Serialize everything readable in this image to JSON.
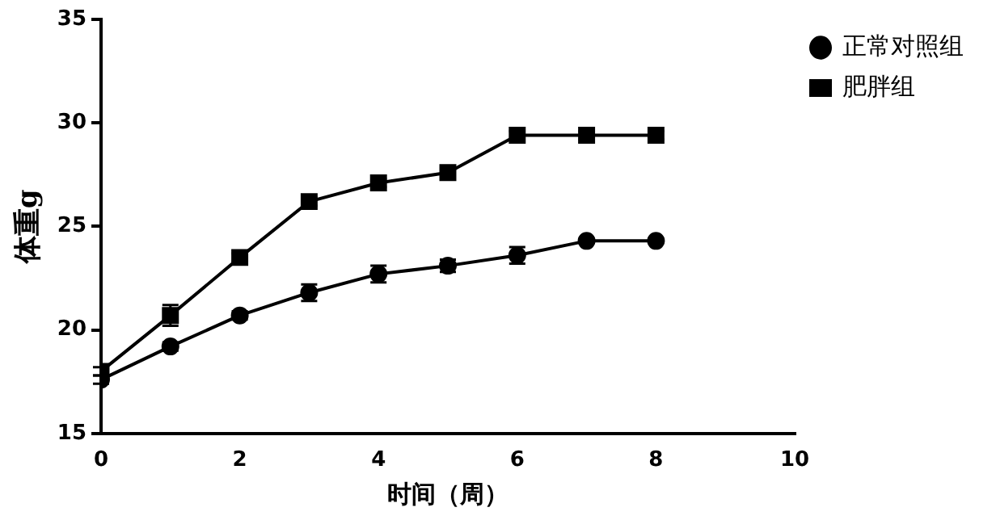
{
  "chart_data": {
    "type": "line",
    "xlabel": "时间（周）",
    "ylabel": "体重g",
    "x": [
      0,
      1,
      2,
      3,
      4,
      5,
      6,
      7,
      8
    ],
    "series": [
      {
        "name": "正常对照组",
        "color": "#000000",
        "marker": "circle",
        "values": [
          17.6,
          19.2,
          20.7,
          21.8,
          22.7,
          23.1,
          23.6,
          24.3,
          24.3
        ],
        "errors": [
          0.2,
          0.2,
          0.2,
          0.4,
          0.4,
          0.3,
          0.4,
          0.1,
          0.1
        ]
      },
      {
        "name": "肥胖组",
        "color": "#000000",
        "marker": "square",
        "values": [
          18.0,
          20.7,
          23.5,
          26.2,
          27.1,
          27.6,
          29.4,
          29.4,
          29.4
        ],
        "errors": [
          0.2,
          0.5,
          0.2,
          0.2,
          0.2,
          0.2,
          0.2,
          0.2,
          0.2
        ]
      }
    ],
    "xlim": [
      0,
      10
    ],
    "xticks": [
      0,
      2,
      4,
      6,
      8,
      10
    ],
    "ylim": [
      15,
      35
    ],
    "yticks": [
      15,
      20,
      25,
      30,
      35
    ],
    "grid": false,
    "legend": "top right",
    "line_style": "solid"
  }
}
